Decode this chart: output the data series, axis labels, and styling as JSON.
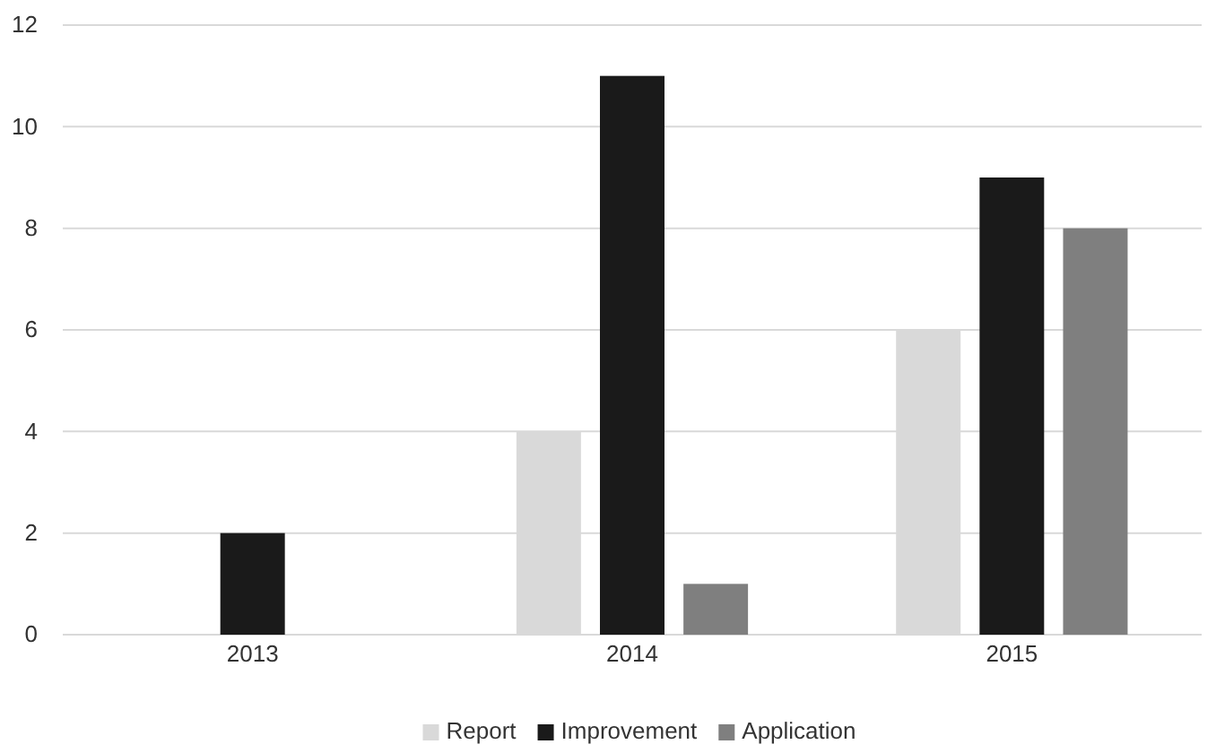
{
  "chart_data": {
    "type": "bar",
    "categories": [
      "2013",
      "2014",
      "2015"
    ],
    "series": [
      {
        "name": "Report",
        "color": "#d9d9d9",
        "values": [
          0,
          4,
          6
        ]
      },
      {
        "name": "Improvement",
        "color": "#1a1a1a",
        "values": [
          2,
          11,
          9
        ]
      },
      {
        "name": "Application",
        "color": "#7f7f7f",
        "values": [
          0,
          1,
          8
        ]
      }
    ],
    "ylim": [
      0,
      12
    ],
    "yticks": [
      0,
      2,
      4,
      6,
      8,
      10,
      12
    ],
    "grid": "y",
    "legend": "bottom"
  }
}
